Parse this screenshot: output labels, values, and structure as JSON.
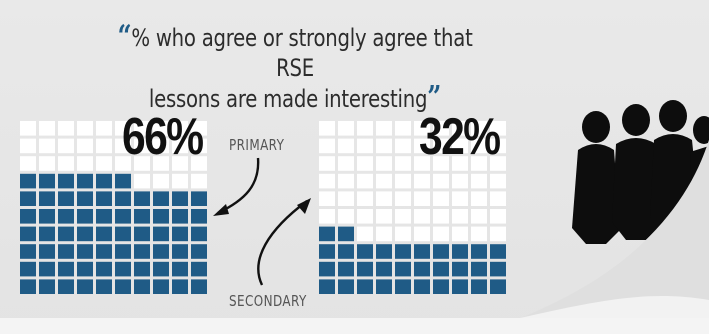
{
  "title": {
    "open_quote": "“",
    "text_line1": "% who agree or strongly agree that RSE",
    "text_line2": "lessons are made interesting",
    "close_quote": "”"
  },
  "chart_data": [
    {
      "type": "waffle",
      "series": "PRIMARY",
      "value": 66,
      "label": "66%",
      "total_cells": 100,
      "filled_color": "#1f5b86",
      "empty_color": "#ffffff"
    },
    {
      "type": "waffle",
      "series": "SECONDARY",
      "value": 32,
      "label": "32%",
      "total_cells": 100,
      "filled_color": "#1f5b86",
      "empty_color": "#ffffff"
    }
  ],
  "colors": {
    "accent": "#1f5b86",
    "background": "#e6e6e6",
    "text": "#2c2c2c"
  }
}
